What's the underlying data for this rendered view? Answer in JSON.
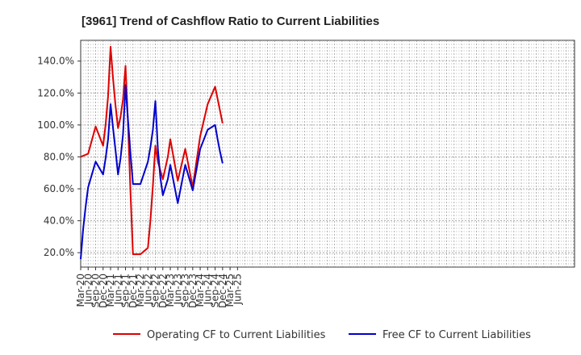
{
  "chart_data": {
    "type": "line",
    "title": "[3961]  Trend of Cashflow Ratio to Current Liabilities",
    "xlabel": "",
    "ylabel": "",
    "ylim": [
      11,
      153
    ],
    "y_ticks": [
      20,
      40,
      60,
      80,
      100,
      120,
      140
    ],
    "y_tick_format": "percent_1dp",
    "grid": true,
    "legend_position": "bottom",
    "x_start": "Mar-20",
    "x_tick_labels": [
      "Mar-20",
      "Jun-20",
      "Sep-20",
      "Dec-20",
      "Mar-21",
      "Jun-21",
      "Sep-21",
      "Dec-21",
      "Mar-22",
      "Jun-22",
      "Sep-22",
      "Dec-22",
      "Mar-23",
      "Jun-23",
      "Sep-23",
      "Dec-23",
      "Mar-24",
      "Jun-24",
      "Sep-24",
      "Dec-24",
      "Mar-25",
      "Jun-25"
    ],
    "x": [
      "Mar-20",
      "Apr-20",
      "May-20",
      "Jun-20",
      "Jul-20",
      "Aug-20",
      "Sep-20",
      "Oct-20",
      "Nov-20",
      "Dec-20",
      "Jan-21",
      "Feb-21",
      "Mar-21",
      "Apr-21",
      "May-21",
      "Jun-21",
      "Jul-21",
      "Aug-21",
      "Sep-21",
      "Oct-21",
      "Nov-21",
      "Dec-21",
      "Jan-22",
      "Feb-22",
      "Mar-22",
      "Apr-22",
      "May-22",
      "Jun-22",
      "Jul-22",
      "Aug-22",
      "Sep-22",
      "Oct-22",
      "Nov-22",
      "Dec-22",
      "Jan-23",
      "Feb-23",
      "Mar-23",
      "Apr-23",
      "May-23",
      "Jun-23",
      "Jul-23",
      "Aug-23",
      "Sep-23",
      "Oct-23",
      "Nov-23",
      "Dec-23",
      "Jan-24",
      "Feb-24",
      "Mar-24",
      "Apr-24",
      "May-24",
      "Jun-24",
      "Jul-24",
      "Aug-24",
      "Sep-24",
      "Oct-24",
      "Nov-24",
      "Dec-24"
    ],
    "series": [
      {
        "name": "Operating CF to Current Liabilities",
        "color": "#dd0000",
        "values": [
          80,
          null,
          null,
          82,
          null,
          null,
          99,
          null,
          null,
          87,
          100,
          118,
          149,
          129,
          112,
          98,
          105,
          116,
          137,
          101,
          58,
          19,
          null,
          null,
          19,
          null,
          null,
          23,
          40,
          62,
          87,
          77,
          null,
          66,
          null,
          80,
          91,
          null,
          null,
          65,
          null,
          null,
          85,
          null,
          null,
          61,
          null,
          null,
          93,
          null,
          null,
          113,
          null,
          null,
          124,
          null,
          null,
          101
        ]
      },
      {
        "name": "Free CF to Current Liabilities",
        "color": "#0000cc",
        "values": [
          16,
          35,
          49,
          61,
          null,
          null,
          77,
          null,
          null,
          69,
          79,
          91,
          113,
          98,
          84,
          69,
          79,
          94,
          125,
          103,
          82,
          63,
          null,
          null,
          63,
          null,
          null,
          77,
          86,
          97,
          115,
          85,
          67,
          56,
          null,
          66,
          75,
          null,
          null,
          51,
          null,
          null,
          75,
          null,
          null,
          59,
          null,
          null,
          85,
          null,
          null,
          97,
          null,
          null,
          100,
          91,
          83,
          76
        ]
      }
    ]
  }
}
